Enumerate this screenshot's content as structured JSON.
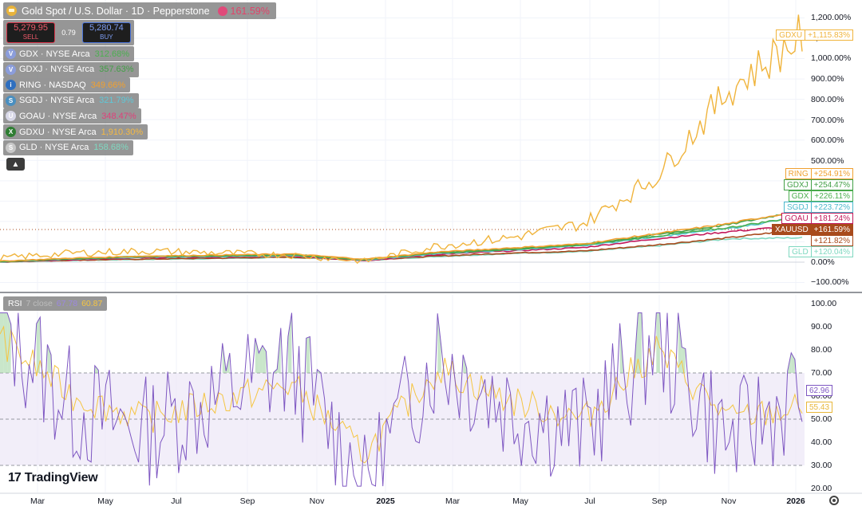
{
  "header": {
    "title": "Gold Spot / U.S. Dollar · 1D · Pepperstone",
    "change_value": "161.59%",
    "sell_price": "5,279.95",
    "sell_label": "SELL",
    "spread": "0.79",
    "buy_price": "5,280.74",
    "buy_label": "BUY",
    "collapse_icon": "chevron-up-icon"
  },
  "legend": [
    {
      "symbol": "GDX · NYSE Arca",
      "value": "312.68%",
      "color": "#4caf50",
      "icon_color": "#8b9ddb",
      "icon_char": "V"
    },
    {
      "symbol": "GDXJ · NYSE Arca",
      "value": "357.63%",
      "color": "#43a047",
      "icon_color": "#8b9ddb",
      "icon_char": "V"
    },
    {
      "symbol": "RING · NASDAQ",
      "value": "349.66%",
      "color": "#f0a030",
      "icon_color": "#2f6fbf",
      "icon_char": "i"
    },
    {
      "symbol": "SGDJ · NYSE Arca",
      "value": "321.79%",
      "color": "#5ec8d8",
      "icon_color": "#4a8fc0",
      "icon_char": "S"
    },
    {
      "symbol": "GOAU · NYSE Arca",
      "value": "348.47%",
      "color": "#e0407a",
      "icon_color": "#d8d8e8",
      "icon_char": "U"
    },
    {
      "symbol": "GDXU · NYSE Arca",
      "value": "1,910.30%",
      "color": "#f5b942",
      "icon_color": "#2e7d32",
      "icon_char": "X"
    },
    {
      "symbol": "GLD · NYSE Arca",
      "value": "158.68%",
      "color": "#7fd8c0",
      "icon_color": "#c8c8c8",
      "icon_char": "S"
    }
  ],
  "price_axis": [
    "1,200.00%",
    "1,100.00%",
    "1,000.00%",
    "900.00%",
    "800.00%",
    "700.00%",
    "600.00%",
    "500.00%",
    "0.00%",
    "−100.00%"
  ],
  "series_tags": [
    {
      "sym": "GDXU",
      "val": "+1,115.83%",
      "color": "#f0b43c",
      "filled": false
    },
    {
      "sym": "RING",
      "val": "+254.91%",
      "color": "#f0a030",
      "filled": false
    },
    {
      "sym": "GDXJ",
      "val": "+254.47%",
      "color": "#43a047",
      "filled": false
    },
    {
      "sym": "GDX",
      "val": "+226.11%",
      "color": "#4caf50",
      "filled": false
    },
    {
      "sym": "SGDJ",
      "val": "+223.72%",
      "color": "#4ab8cc",
      "filled": false
    },
    {
      "sym": "GOAU",
      "val": "+181.24%",
      "color": "#c2185b",
      "filled": false
    },
    {
      "sym": "XAUUSD",
      "val": "+161.59%",
      "color": "#a84a1c",
      "filled": true
    },
    {
      "sym": "",
      "val": "+121.82%",
      "color": "#a84a1c",
      "filled": false
    },
    {
      "sym": "GLD",
      "val": "+120.04%",
      "color": "#7fd8c0",
      "filled": false
    }
  ],
  "rsi": {
    "label": "RSI",
    "params": "7 close",
    "value1": "67.78",
    "value2": "60.87",
    "axis": [
      "100.00",
      "90.00",
      "80.00",
      "70.00",
      "60.00",
      "50.00",
      "40.00",
      "30.00",
      "20.00"
    ],
    "tag1": "62.96",
    "tag2": "55.43",
    "upper_band": 70,
    "lower_band": 30,
    "mid_band": 50
  },
  "time_axis": [
    "Mar",
    "May",
    "Jul",
    "Sep",
    "Nov",
    "2025",
    "Mar",
    "May",
    "Jul",
    "Sep",
    "Nov",
    "2026"
  ],
  "branding": {
    "logo_mark": "17",
    "logo_text": "TradingView"
  },
  "colors": {
    "gold_main": "#f0b43c",
    "xauusd": "#a84a1c",
    "rsi_line": "#7e57c2",
    "rsi_ma": "#f5c542",
    "band_fill": "#ede7f6"
  },
  "chart_data": [
    {
      "type": "line",
      "title": "Gold Spot / U.S. Dollar · 1D · Pepperstone",
      "x": [
        "Mar",
        "May",
        "Jul",
        "Sep",
        "Nov",
        "2025",
        "Mar",
        "May",
        "Jul",
        "Sep",
        "Nov",
        "2026"
      ],
      "series": [
        {
          "name": "GDXU",
          "values": [
            20,
            45,
            55,
            45,
            35,
            5,
            80,
            120,
            190,
            420,
            850,
            1116
          ]
        },
        {
          "name": "RING",
          "values": [
            5,
            20,
            30,
            35,
            40,
            15,
            50,
            70,
            90,
            140,
            190,
            255
          ]
        },
        {
          "name": "GDXJ",
          "values": [
            3,
            18,
            28,
            32,
            38,
            12,
            48,
            65,
            88,
            135,
            185,
            254
          ]
        },
        {
          "name": "GDX",
          "values": [
            3,
            17,
            27,
            30,
            35,
            12,
            45,
            62,
            84,
            128,
            170,
            226
          ]
        },
        {
          "name": "SGDJ",
          "values": [
            2,
            15,
            25,
            28,
            33,
            10,
            42,
            60,
            80,
            125,
            165,
            224
          ]
        },
        {
          "name": "GOAU",
          "values": [
            2,
            13,
            22,
            25,
            30,
            8,
            38,
            55,
            72,
            115,
            150,
            181
          ]
        },
        {
          "name": "XAUUSD",
          "values": [
            1,
            10,
            15,
            20,
            25,
            10,
            30,
            45,
            55,
            85,
            120,
            162
          ]
        },
        {
          "name": "GLD",
          "values": [
            1,
            9,
            14,
            18,
            23,
            9,
            28,
            42,
            52,
            80,
            115,
            120
          ]
        }
      ],
      "ylim": [
        -100,
        1200
      ]
    },
    {
      "type": "line",
      "title": "RSI 7 close",
      "x": [
        "Mar",
        "May",
        "Jul",
        "Sep",
        "Nov",
        "2025",
        "Mar",
        "May",
        "Jul",
        "Sep",
        "Nov",
        "2026"
      ],
      "series": [
        {
          "name": "RSI",
          "values": [
            95,
            55,
            45,
            60,
            75,
            22,
            80,
            55,
            45,
            88,
            40,
            63
          ]
        },
        {
          "name": "RSI MA",
          "values": [
            85,
            60,
            50,
            58,
            65,
            35,
            72,
            58,
            50,
            80,
            50,
            55
          ]
        }
      ],
      "ylim": [
        20,
        100
      ]
    }
  ]
}
